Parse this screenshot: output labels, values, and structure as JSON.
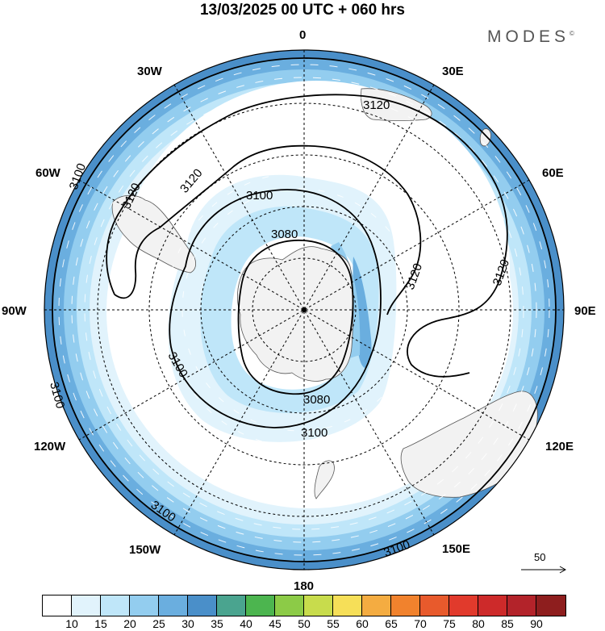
{
  "title": "13/03/2025  00 UTC  + 060 hrs",
  "brand": "MODES",
  "brand_mark": "©",
  "longitude_labels": {
    "n": "0",
    "ne30": "30E",
    "ne60": "60E",
    "e90": "90E",
    "se120": "120E",
    "se150": "150E",
    "s180": "180",
    "sw150": "150W",
    "sw120": "120W",
    "w90": "90W",
    "nw60": "60W",
    "nw30": "30W"
  },
  "contour_labels": {
    "c1": "3120",
    "c2": "3120",
    "c3": "3120",
    "c4": "3120",
    "c5": "3120",
    "c6": "3100",
    "c7": "3100",
    "c8": "3100",
    "c9": "3100",
    "c10": "3100",
    "c11": "3100",
    "c12": "3100",
    "c13": "3080",
    "c14": "3080"
  },
  "vector_scale_label": "50",
  "colorbar": {
    "colors": [
      "#ffffff",
      "#e1f3fc",
      "#bfe6f9",
      "#93cdef",
      "#6aaedf",
      "#4a8fc9",
      "#4aa48f",
      "#4cb54f",
      "#8ccb47",
      "#c8dc4c",
      "#f6df58",
      "#f4ac41",
      "#f1822d",
      "#e85a2c",
      "#e13a2c",
      "#cd2a2a",
      "#b3232a",
      "#8e1e1e"
    ],
    "labels": [
      "10",
      "15",
      "20",
      "25",
      "30",
      "35",
      "40",
      "45",
      "50",
      "55",
      "60",
      "65",
      "70",
      "75",
      "80",
      "85",
      "90"
    ]
  }
}
